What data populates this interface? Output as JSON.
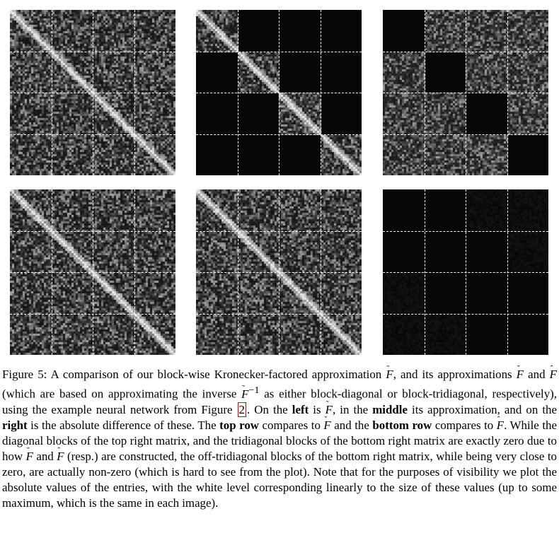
{
  "figure": {
    "panels": [
      {
        "row": "top",
        "column": "left",
        "shows": "F-tilde",
        "zero_blocks": "none"
      },
      {
        "row": "top",
        "column": "middle",
        "shows": "F-breve",
        "zero_blocks": "off-diagonal"
      },
      {
        "row": "top",
        "column": "right",
        "shows": "absolute difference",
        "zero_blocks": "diagonal"
      },
      {
        "row": "bottom",
        "column": "left",
        "shows": "F-tilde",
        "zero_blocks": "none"
      },
      {
        "row": "bottom",
        "column": "middle",
        "shows": "F-hat",
        "zero_blocks": "none"
      },
      {
        "row": "bottom",
        "column": "right",
        "shows": "absolute difference",
        "zero_blocks": "tridiagonal"
      }
    ],
    "block_grid": 4,
    "colors": {
      "background": "#ffffff",
      "panel": "#060606",
      "gridline": "#ffffff",
      "link_box": "#e00000"
    }
  },
  "caption": {
    "s1": "Figure 5:  A comparison of our block-wise Kronecker-factored approximation ",
    "F": "F",
    "tilde": "˜",
    "breve": "ˇ",
    "hat": "ˆ",
    "s2": ", and its approximations",
    "s3": " and ",
    "s4": " (which are based on approximating the inverse ",
    "inv": "−1",
    "s5": " as either block-diagonal or block-tridiagonal, respectively), using the example neural network from Figure ",
    "ref": "2",
    "s6": ". On the ",
    "left": "left",
    "s7": " is ",
    "s8": ", in the ",
    "middle": "middle",
    "s9": " its approximation, and on the ",
    "right": "right",
    "s10": " is the absolute difference of these. The ",
    "top_row": "top row",
    "s11": " compares to ",
    "s12": " and the ",
    "bottom_row": "bottom row",
    "s13": " compares to ",
    "s14": ".  While the diagonal blocks of the top right matrix, and the tridiagonal blocks of the bottom right matrix are exactly zero due to how ",
    "s15": " and ",
    "s16": " (resp.) are constructed, the off-tridiagonal blocks of the bottom right matrix, while being very close to zero, are actually non-zero (which is hard to see from the plot). Note that for the purposes of visibility we plot the absolute values of the entries, with the white level corresponding linearly to the size of these values (up to some maximum, which is the same in each image)."
  }
}
